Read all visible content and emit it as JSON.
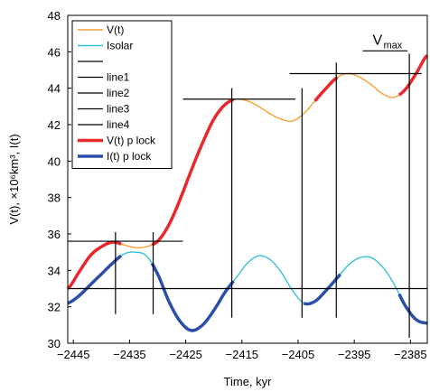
{
  "chart_data": {
    "type": "line",
    "title": "",
    "xlabel": "Time, kyr",
    "ylabel": "V(t), ×10⁶km³, I(t)",
    "xlim": [
      -2446,
      -2382
    ],
    "ylim": [
      30,
      48
    ],
    "x_ticks": [
      -2445,
      -2435,
      -2425,
      -2415,
      -2405,
      -2395,
      -2385
    ],
    "x_tick_labels": [
      "−2445",
      "−2435",
      "−2425",
      "−2415",
      "−2405",
      "−2395",
      "−2385"
    ],
    "y_ticks": [
      30,
      32,
      34,
      36,
      38,
      40,
      42,
      44,
      46,
      48
    ],
    "y_tick_labels": [
      "30",
      "32",
      "34",
      "36",
      "38",
      "40",
      "42",
      "44",
      "46",
      "48"
    ],
    "grid": false,
    "legend_position": "top-left",
    "colors": {
      "V": "#f5a032",
      "Isolar": "#33c3d8",
      "line": "#000000",
      "V_lock": "#e8282a",
      "I_lock": "#2a4fa8"
    },
    "legend": [
      {
        "label": "V(t)",
        "color": "#f5a032",
        "width": 1.4
      },
      {
        "label": "Isolar",
        "color": "#33c3d8",
        "width": 1.4
      },
      {
        "label": "",
        "color": "#000000",
        "width": 1.2
      },
      {
        "label": "line1",
        "color": "#000000",
        "width": 1.2
      },
      {
        "label": "line2",
        "color": "#000000",
        "width": 1.2
      },
      {
        "label": "line3",
        "color": "#000000",
        "width": 1.2
      },
      {
        "label": "line4",
        "color": "#000000",
        "width": 1.2
      },
      {
        "label": "V(t) p lock",
        "color": "#e8282a",
        "width": 3.5
      },
      {
        "label": "I(t) p lock",
        "color": "#2a4fa8",
        "width": 3.5
      }
    ],
    "annotation": {
      "base": "V",
      "subscript": "max",
      "x": -2389,
      "y": 46.2,
      "underline_x": [
        -2393.5,
        -2385.5
      ]
    },
    "series": [
      {
        "name": "V(t)",
        "x": [
          -2446,
          -2444,
          -2442,
          -2440,
          -2438,
          -2436,
          -2434,
          -2432,
          -2430,
          -2428,
          -2426,
          -2424,
          -2422,
          -2420,
          -2418,
          -2416,
          -2414,
          -2412,
          -2410,
          -2408,
          -2406,
          -2404,
          -2402,
          -2400,
          -2398,
          -2396,
          -2394,
          -2392,
          -2390,
          -2388,
          -2386,
          -2384,
          -2382
        ],
        "y": [
          33.0,
          33.9,
          34.8,
          35.3,
          35.55,
          35.4,
          35.25,
          35.3,
          35.6,
          36.5,
          37.9,
          39.5,
          41.0,
          42.3,
          43.1,
          43.4,
          43.3,
          43.0,
          42.6,
          42.3,
          42.2,
          42.6,
          43.3,
          44.0,
          44.6,
          44.8,
          44.6,
          44.2,
          43.7,
          43.5,
          43.9,
          44.8,
          45.8
        ]
      },
      {
        "name": "Isolar",
        "x": [
          -2446,
          -2444,
          -2442,
          -2440,
          -2438,
          -2436,
          -2434,
          -2432,
          -2430,
          -2428,
          -2426,
          -2424,
          -2422,
          -2420,
          -2418,
          -2416,
          -2414,
          -2412,
          -2410,
          -2408,
          -2406,
          -2404,
          -2402,
          -2400,
          -2398,
          -2396,
          -2394,
          -2392,
          -2390,
          -2388,
          -2386,
          -2384,
          -2382
        ],
        "y": [
          32.2,
          32.6,
          33.2,
          33.8,
          34.4,
          34.9,
          35.0,
          34.8,
          33.8,
          32.3,
          31.2,
          30.7,
          31.0,
          31.8,
          32.8,
          33.6,
          34.4,
          34.8,
          34.6,
          33.9,
          32.9,
          32.2,
          32.3,
          32.9,
          33.6,
          34.3,
          34.7,
          34.7,
          34.2,
          33.3,
          32.1,
          31.3,
          31.1
        ]
      }
    ],
    "locks": [
      {
        "name": "V(t) p lock",
        "series": "V(t)",
        "x_ranges": [
          [
            -2446,
            -2436.5
          ],
          [
            -2431,
            -2416.5
          ],
          [
            -2402,
            -2398
          ],
          [
            -2387,
            -2382
          ]
        ]
      },
      {
        "name": "I(t) p lock",
        "series": "Isolar",
        "x_ranges": [
          [
            -2446,
            -2436.5
          ],
          [
            -2431,
            -2416.5
          ],
          [
            -2404,
            -2397.5
          ],
          [
            -2387,
            -2382
          ]
        ]
      }
    ],
    "horizontal_lines": [
      {
        "y": 35.6,
        "x": [
          -2446,
          -2425.5
        ]
      },
      {
        "y": 43.4,
        "x": [
          -2425.5,
          -2405.5
        ]
      },
      {
        "y": 44.8,
        "x": [
          -2406.5,
          -2383
        ]
      },
      {
        "y": 33.0,
        "x": [
          -2446,
          -2382
        ]
      }
    ],
    "vertical_lines": [
      {
        "x": -2437.5,
        "y": [
          31.6,
          36.1
        ]
      },
      {
        "x": -2430.8,
        "y": [
          31.6,
          36.1
        ]
      },
      {
        "x": -2416.8,
        "y": [
          31.4,
          44.0
        ]
      },
      {
        "x": -2404.3,
        "y": [
          31.4,
          44.0
        ]
      },
      {
        "x": -2398.2,
        "y": [
          31.4,
          45.4
        ]
      },
      {
        "x": -2385.2,
        "y": [
          30.3,
          45.9
        ]
      }
    ]
  }
}
